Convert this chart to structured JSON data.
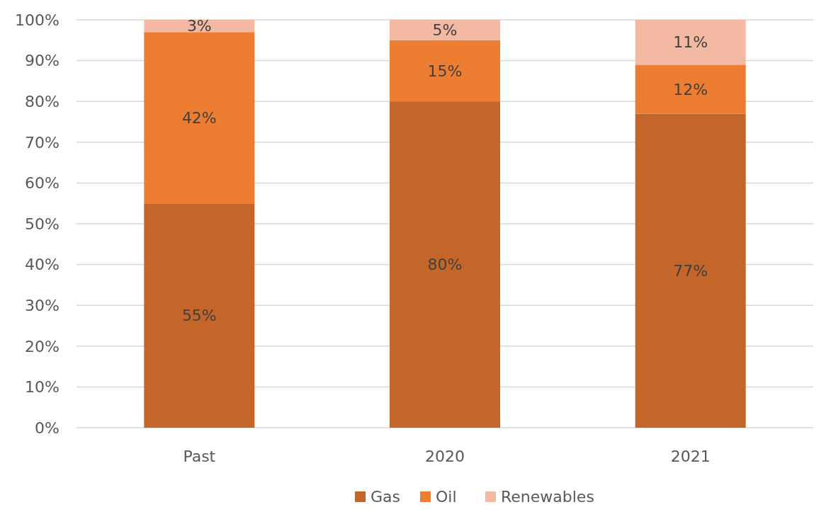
{
  "chart_data": {
    "type": "bar",
    "stacked": true,
    "categories": [
      "Past",
      "2020",
      "2021"
    ],
    "series": [
      {
        "name": "Gas",
        "color": "#c4662a",
        "values": [
          55,
          80,
          77
        ],
        "value_labels": [
          "55%",
          "80%",
          "77%"
        ]
      },
      {
        "name": "Oil",
        "color": "#ed7d31",
        "values": [
          42,
          15,
          12
        ],
        "value_labels": [
          "42%",
          "15%",
          "12%"
        ]
      },
      {
        "name": "Renewables",
        "color": "#f4b9a2",
        "values": [
          3,
          5,
          11
        ],
        "value_labels": [
          "3%",
          "5%",
          "11%"
        ]
      }
    ],
    "ylim": [
      0,
      100
    ],
    "yticks": [
      {
        "value": 0,
        "label": "0%"
      },
      {
        "value": 10,
        "label": "10%"
      },
      {
        "value": 20,
        "label": "20%"
      },
      {
        "value": 30,
        "label": "30%"
      },
      {
        "value": 40,
        "label": "40%"
      },
      {
        "value": 50,
        "label": "50%"
      },
      {
        "value": 60,
        "label": "60%"
      },
      {
        "value": 70,
        "label": "70%"
      },
      {
        "value": 80,
        "label": "80%"
      },
      {
        "value": 90,
        "label": "90%"
      },
      {
        "value": 100,
        "label": "100%"
      }
    ],
    "grid": "y",
    "legend": "bottom"
  }
}
